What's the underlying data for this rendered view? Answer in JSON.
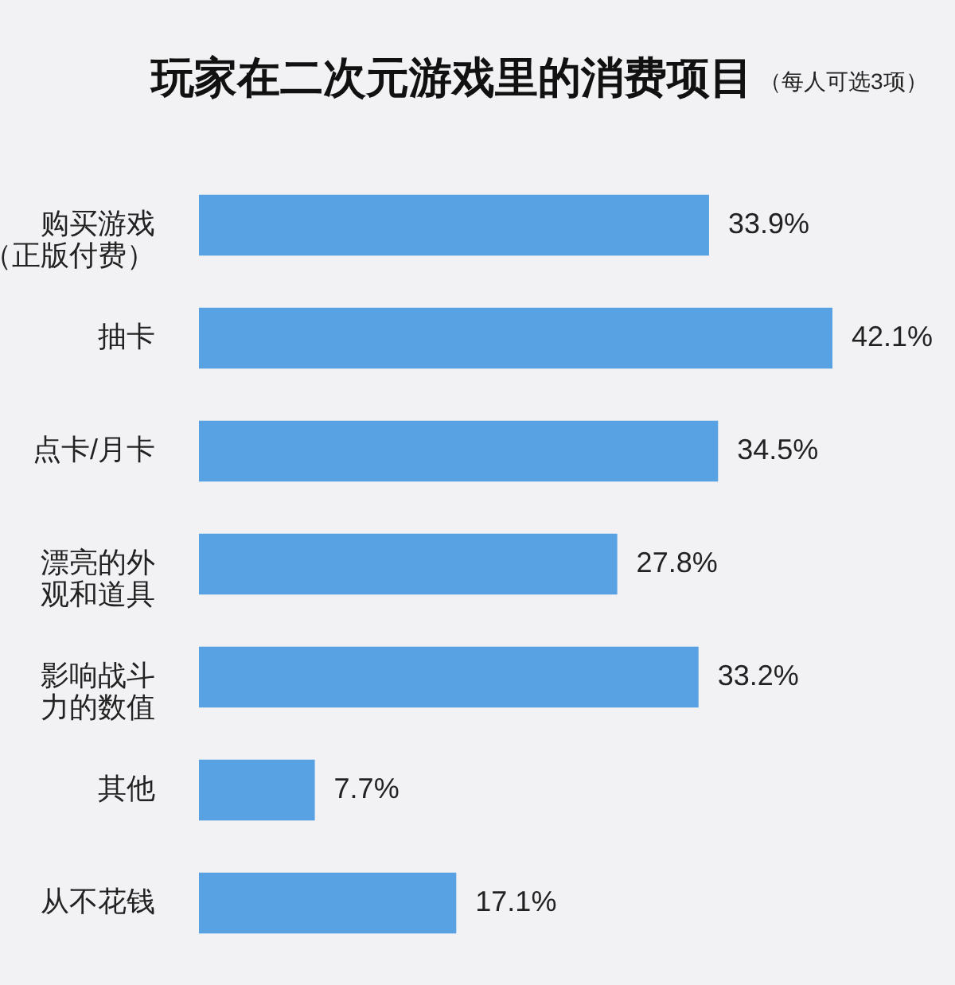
{
  "chart_data": {
    "type": "bar",
    "orientation": "horizontal",
    "title": "玩家在二次元游戏里的消费项目",
    "subtitle": "（每人可选3项）",
    "categories": [
      "购买游戏（正版付费）",
      "抽卡",
      "点卡/月卡",
      "漂亮的外观和道具",
      "影响战斗力的数值",
      "其他",
      "从不花钱"
    ],
    "values": [
      33.9,
      42.1,
      34.5,
      27.8,
      33.2,
      7.7,
      17.1
    ],
    "color": "#58a2e4",
    "value_labels": [
      "33.9%",
      "42.1%",
      "34.5%",
      "27.8%",
      "33.2%",
      "7.7%",
      "17.1%"
    ]
  }
}
